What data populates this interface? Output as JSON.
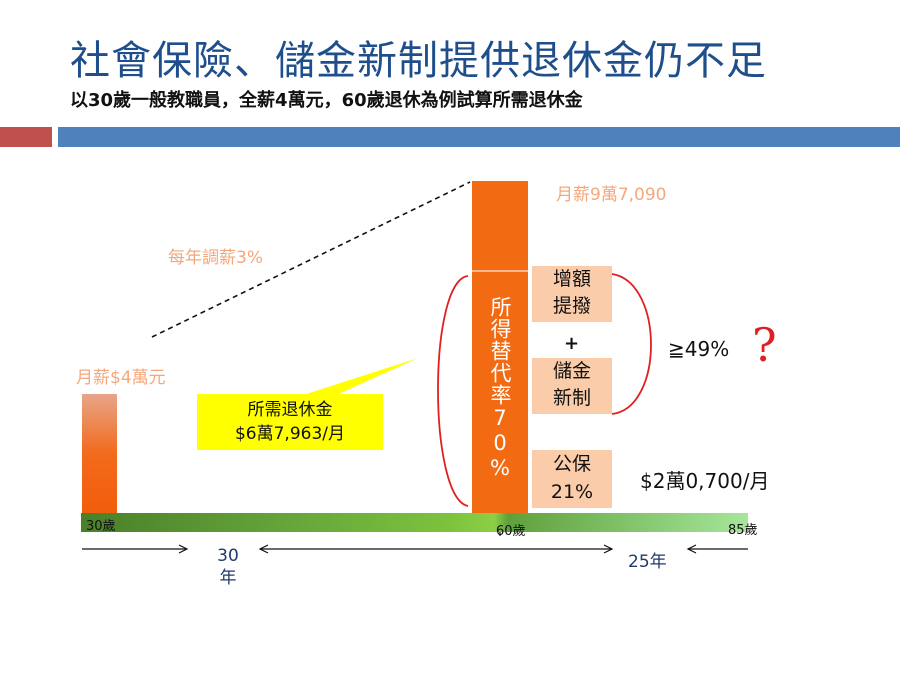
{
  "title": "社會保險、儲金新制提供退休金仍不足",
  "subtitle": "以30歲一般教職員，全薪4萬元，60歲退休為例試算所需退休金",
  "labels": {
    "raise": "每年調薪3%",
    "salary_start": "月薪$4萬元",
    "salary_end": "月薪9萬7,090",
    "replacement_rate": "所得替代率70%",
    "plus": "+",
    "ge49": "≧49%",
    "question": "?",
    "pension_amount": "$2萬0,700/月"
  },
  "boxes": {
    "extra_line1": "增額",
    "extra_line2": "提撥",
    "new_line1": "儲金",
    "new_line2": "新制",
    "pub_line1": "公保",
    "pub_line2": "21%"
  },
  "callout": {
    "line1": "所需退休金",
    "line2": "$6萬7,963/月"
  },
  "timeline": {
    "age_start": "30歲",
    "age_retire": "60歲",
    "age_end": "85歲",
    "work_years_num": "30",
    "work_years_unit": "年",
    "retire_years": "25年"
  },
  "colors": {
    "title": "#1f4e8c",
    "bar": "#f26a12",
    "box": "#fbcca9",
    "callout": "#ffff00",
    "brace": "#e02020"
  }
}
